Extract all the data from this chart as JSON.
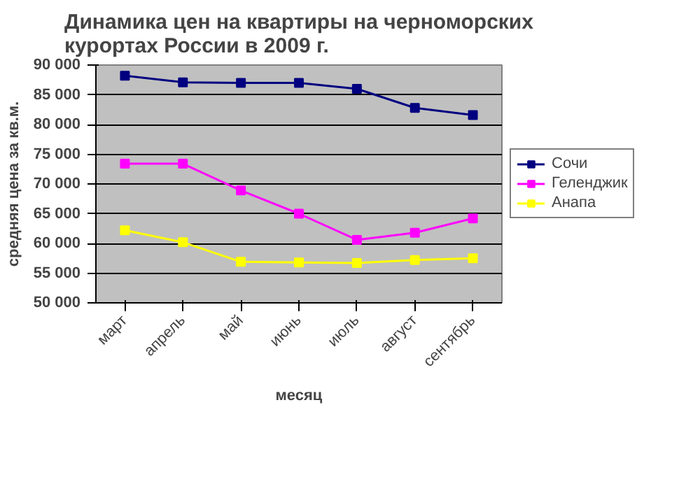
{
  "chart_data": {
    "type": "line",
    "title": "Динамика цен на квартиры на черноморских курортах России в 2009 г.",
    "xlabel": "месяц",
    "ylabel": "средняя цена за кв.м.",
    "categories": [
      "март",
      "апрель",
      "май",
      "июнь",
      "июль",
      "август",
      "сентябрь"
    ],
    "series": [
      {
        "name": "Сочи",
        "color": "#000080",
        "values": [
          88200,
          87100,
          87000,
          87000,
          86000,
          82800,
          81600
        ]
      },
      {
        "name": "Геленджик",
        "color": "#ff00ff",
        "values": [
          73400,
          73400,
          68900,
          65000,
          60600,
          61800,
          64200
        ]
      },
      {
        "name": "Анапа",
        "color": "#ffff00",
        "values": [
          62200,
          60200,
          56900,
          56800,
          56700,
          57200,
          57500
        ]
      }
    ],
    "ylim": [
      50000,
      90000
    ],
    "yticks": [
      {
        "value": 50000,
        "label": "50 000"
      },
      {
        "value": 55000,
        "label": "55 000"
      },
      {
        "value": 60000,
        "label": "60 000"
      },
      {
        "value": 65000,
        "label": "65 000"
      },
      {
        "value": 70000,
        "label": "70 000"
      },
      {
        "value": 75000,
        "label": "75 000"
      },
      {
        "value": 80000,
        "label": "80 000"
      },
      {
        "value": 85000,
        "label": "85 000"
      },
      {
        "value": 90000,
        "label": "90 000"
      }
    ],
    "grid": "y",
    "legend": "right",
    "marker": "square",
    "line_style": "solid"
  }
}
